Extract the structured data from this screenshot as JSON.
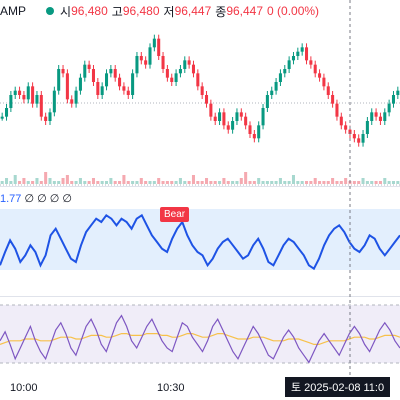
{
  "legend": {
    "symbol": "AMP",
    "open_label": "시",
    "open_value": "96,480",
    "high_label": "고",
    "high_value": "96,480",
    "low_label": "저",
    "low_value": "96,447",
    "close_label": "종",
    "close_value": "96,447",
    "change": "0 (0.00%)"
  },
  "oscillator": {
    "value": "1.77",
    "extras": "∅ ∅ ∅ ∅",
    "signal_label": "Bear"
  },
  "time_axis": {
    "ticks": [
      "10:00",
      "10:30"
    ],
    "crosshair_label": "토 2025-02-08  11:0"
  },
  "colors": {
    "up": "#089981",
    "down": "#f23645",
    "osc_line": "#1e53e5",
    "rsi_line": "#7e57c2",
    "rsi_ma": "#f7c14a"
  },
  "chart_data": [
    {
      "type": "candlestick",
      "series": [
        {
          "name": "price",
          "values": [
            60,
            64,
            70,
            72,
            70,
            68,
            74,
            66,
            70,
            60,
            58,
            62,
            72,
            82,
            80,
            68,
            66,
            72,
            78,
            84,
            82,
            76,
            70,
            74,
            80,
            82,
            78,
            74,
            72,
            70,
            80,
            88,
            86,
            84,
            92,
            96,
            88,
            82,
            78,
            76,
            80,
            82,
            86,
            84,
            80,
            74,
            70,
            66,
            60,
            58,
            62,
            56,
            54,
            58,
            62,
            60,
            56,
            52,
            50,
            56,
            64,
            70,
            72,
            76,
            80,
            82,
            86,
            88,
            90,
            92,
            86,
            84,
            80,
            78,
            74,
            70,
            66,
            60,
            56,
            54,
            52,
            50,
            48,
            52,
            58,
            62,
            60,
            58,
            62,
            66,
            70,
            72
          ]
        }
      ],
      "volume": [
        1,
        2,
        1,
        3,
        1,
        2,
        1,
        1,
        2,
        1,
        4,
        2,
        1,
        1,
        2,
        3,
        1,
        1,
        2,
        1,
        1,
        2,
        1,
        1,
        1,
        2,
        1,
        1,
        3,
        1,
        1,
        1,
        2,
        1,
        1,
        1,
        2,
        1,
        1,
        1,
        1,
        2,
        1,
        1,
        3,
        1,
        1,
        2,
        1,
        1,
        1,
        2,
        1,
        1,
        1,
        2,
        4,
        1,
        1,
        2,
        1,
        1,
        1,
        1,
        2,
        1,
        1,
        3,
        1,
        1,
        1,
        1,
        2,
        1,
        1,
        1,
        2,
        1,
        1,
        2,
        1,
        1,
        1,
        2,
        1,
        1,
        1,
        1,
        2,
        1,
        1,
        1
      ]
    },
    {
      "type": "line",
      "name": "oscillator",
      "values": [
        30,
        38,
        45,
        40,
        32,
        36,
        42,
        38,
        30,
        36,
        48,
        52,
        46,
        40,
        34,
        32,
        42,
        50,
        54,
        58,
        56,
        60,
        58,
        54,
        58,
        56,
        52,
        58,
        60,
        54,
        48,
        44,
        40,
        38,
        46,
        52,
        56,
        48,
        42,
        38,
        36,
        30,
        34,
        40,
        44,
        46,
        42,
        38,
        34,
        36,
        42,
        46,
        40,
        32,
        30,
        36,
        42,
        46,
        44,
        40,
        36,
        30,
        28,
        34,
        42,
        48,
        52,
        54,
        50,
        44,
        40,
        38,
        42,
        48,
        46,
        40,
        36,
        40,
        44,
        48
      ]
    },
    {
      "type": "line",
      "name": "rsi",
      "values": [
        50,
        55,
        48,
        40,
        46,
        52,
        58,
        50,
        44,
        40,
        48,
        56,
        60,
        54,
        46,
        42,
        50,
        58,
        62,
        56,
        48,
        44,
        52,
        60,
        64,
        58,
        50,
        46,
        52,
        58,
        62,
        56,
        50,
        46,
        44,
        52,
        60,
        58,
        52,
        48,
        44,
        50,
        58,
        62,
        56,
        50,
        44,
        40,
        46,
        52,
        58,
        54,
        48,
        42,
        40,
        46,
        52,
        56,
        52,
        46,
        42,
        38,
        44,
        50,
        54,
        50,
        46,
        42,
        48,
        54,
        58,
        54,
        48,
        44,
        50,
        56,
        60,
        56,
        50,
        46
      ]
    },
    {
      "type": "line",
      "name": "rsi_ma",
      "values": [
        48,
        49,
        50,
        50,
        50,
        51,
        51,
        51,
        50,
        50,
        50,
        51,
        52,
        52,
        52,
        51,
        51,
        52,
        53,
        53,
        53,
        52,
        52,
        53,
        54,
        54,
        53,
        53,
        53,
        54,
        54,
        54,
        53,
        53,
        52,
        52,
        53,
        54,
        54,
        53,
        52,
        52,
        53,
        54,
        54,
        53,
        52,
        51,
        51,
        51,
        52,
        52,
        52,
        51,
        50,
        50,
        50,
        51,
        51,
        51,
        50,
        49,
        48,
        48,
        49,
        50,
        50,
        50,
        50,
        51,
        52,
        52,
        52,
        51,
        51,
        52,
        53,
        53,
        53,
        52
      ]
    }
  ]
}
